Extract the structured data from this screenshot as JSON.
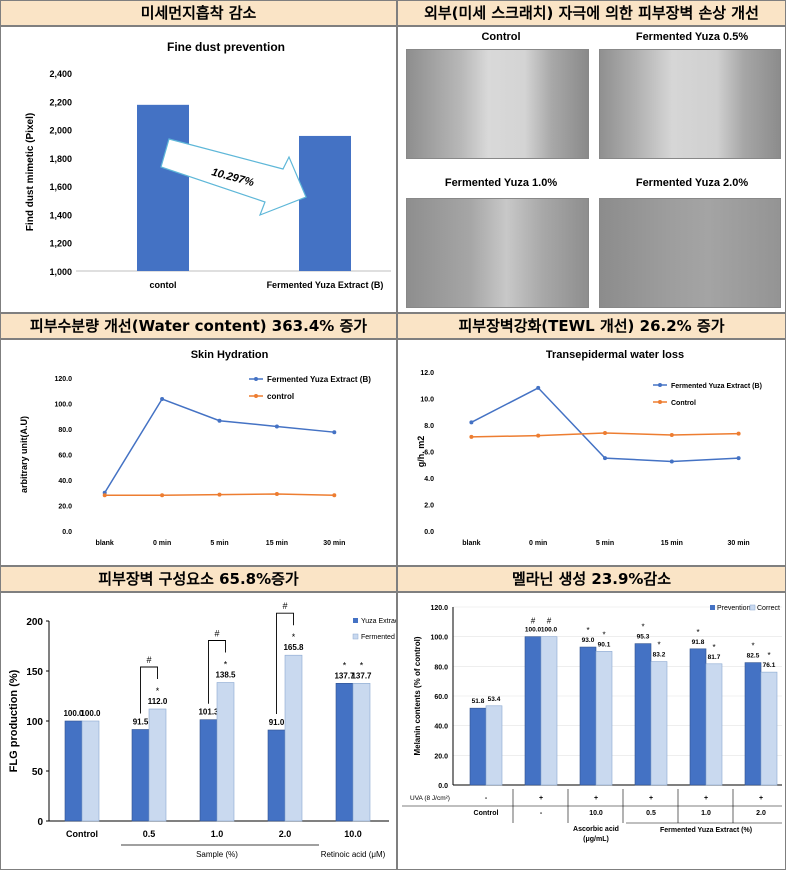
{
  "headers": {
    "h1": "미세먼지흡착 감소",
    "h2": "외부(미세 스크래치) 자극에 의한 피부장벽 손상 개선",
    "h3": "피부수분량 개선(Water content) 363.4% 증가",
    "h4": "피부장벽강화(TEWL 개선) 26.2% 증가",
    "h5": "피부장벽 구성요소 65.8%증가",
    "h6": "멜라닌 생성 23.9%감소"
  },
  "micro_labels": [
    "Control",
    "Fermented Yuza 0.5%",
    "Fermented Yuza 1.0%",
    "Fermented Yuza 2.0%"
  ],
  "colors": {
    "blue": "#4472c4",
    "orange": "#ed7d31",
    "lightblue": "#c9d9ef",
    "header_bg": "#fae4c6"
  },
  "chart_data": [
    {
      "type": "bar",
      "title": "Fine dust prevention",
      "ylabel": "Find dust mimetic (Pixel)",
      "categories": [
        "contol",
        "Fermented Yuza Extract  (B)"
      ],
      "values": [
        2175,
        1955
      ],
      "ylim": [
        1000,
        2400
      ],
      "yticks": [
        "1,000",
        "1,200",
        "1,400",
        "1,600",
        "1,800",
        "2,000",
        "2,200",
        "2,400"
      ],
      "annotation": "10.297%"
    },
    {
      "type": "line",
      "title": "Skin Hydration",
      "ylabel": "arbitrary unit(A.U)",
      "categories": [
        "blank",
        "0 min",
        "5 min",
        "15 min",
        "30 min"
      ],
      "ylim": [
        0,
        120
      ],
      "yticks": [
        "0.0",
        "20.0",
        "40.0",
        "60.0",
        "80.0",
        "100.0",
        "120.0"
      ],
      "series": [
        {
          "name": "Fermented Yuza Extract (B)",
          "values": [
            30,
            103.5,
            86.5,
            82,
            77.5
          ]
        },
        {
          "name": "control",
          "values": [
            28,
            28,
            28.5,
            29,
            28
          ]
        }
      ]
    },
    {
      "type": "line",
      "title": "Transepidermal water loss",
      "ylabel": "g/h. m2",
      "categories": [
        "blank",
        "0 min",
        "5 min",
        "15 min",
        "30 min"
      ],
      "ylim": [
        0,
        12
      ],
      "yticks": [
        "0.0",
        "2.0",
        "4.0",
        "6.0",
        "8.0",
        "10.0",
        "12.0"
      ],
      "series": [
        {
          "name": "Fermented Yuza Extract (B)",
          "values": [
            8.2,
            10.8,
            5.5,
            5.25,
            5.5
          ]
        },
        {
          "name": "Control",
          "values": [
            7.1,
            7.2,
            7.4,
            7.25,
            7.35
          ]
        }
      ]
    },
    {
      "type": "bar",
      "ylabel": "FLG production (%)",
      "categories": [
        "Control",
        "0.5",
        "1.0",
        "2.0",
        "10.0"
      ],
      "xgroup_labels": [
        "Sample (%)",
        "Retinoic acid (μM)"
      ],
      "ylim": [
        0,
        200
      ],
      "yticks": [
        "0",
        "50",
        "100",
        "150",
        "200"
      ],
      "series": [
        {
          "name": "Yuza Extrac",
          "values": [
            100.0,
            91.5,
            101.3,
            91.0,
            137.7
          ],
          "labels": [
            "100.0",
            "91.5",
            "101.3",
            "91.0",
            "137.7"
          ]
        },
        {
          "name": "Fermented",
          "values": [
            100.0,
            112.0,
            138.5,
            165.8,
            137.7
          ],
          "labels": [
            "100.0",
            "112.0",
            "138.5",
            "165.8",
            "137.7"
          ]
        }
      ],
      "marks": {
        "star": "*",
        "hash": "#"
      }
    },
    {
      "type": "bar",
      "ylabel": "Melanin contents (% of control)",
      "uva_label": "UVA (8 J/cm²)",
      "uva_row": [
        "-",
        "+",
        "+",
        "+",
        "+",
        "+"
      ],
      "conc_row": [
        "Control",
        "-",
        "10.0",
        "0.5",
        "1.0",
        "2.0"
      ],
      "group_labels": [
        "Ascorbic acid\n(μg/mL)",
        "Fermented Yuza Extract (%)"
      ],
      "ylim": [
        0,
        120
      ],
      "yticks": [
        "0.0",
        "20.0",
        "40.0",
        "60.0",
        "80.0",
        "100.0",
        "120.0"
      ],
      "series": [
        {
          "name": "Prevention",
          "values": [
            51.8,
            100.0,
            93.0,
            95.3,
            91.8,
            82.5
          ],
          "labels": [
            "51.8",
            "100.0",
            "93.0",
            "95.3",
            "91.8",
            "82.5"
          ]
        },
        {
          "name": "Correct",
          "values": [
            53.4,
            100.0,
            90.1,
            83.2,
            81.7,
            76.1
          ],
          "labels": [
            "53.4",
            "100.0",
            "90.1",
            "83.2",
            "81.7",
            "76.1"
          ]
        }
      ],
      "marks": {
        "star": "*",
        "hash": "#"
      }
    }
  ]
}
